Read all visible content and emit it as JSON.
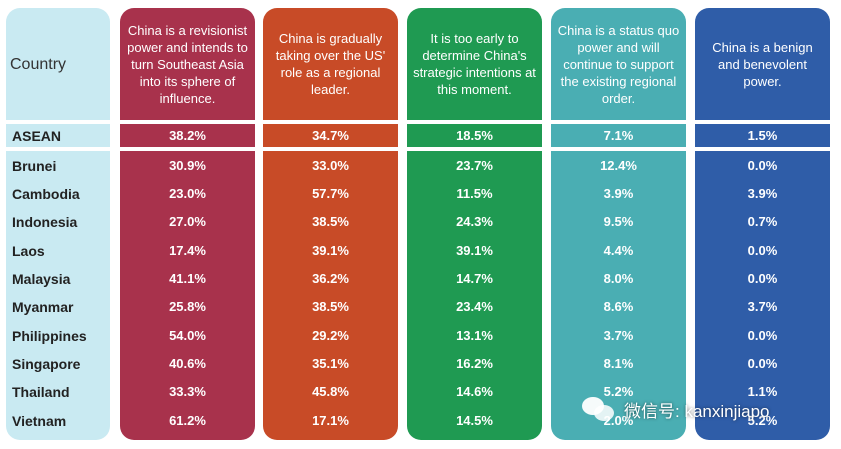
{
  "chart_data": {
    "type": "table",
    "country_header": "Country",
    "columns": [
      {
        "label": "China is a revisionist power and intends to turn Southeast Asia into its sphere of influence.",
        "color": "#a8324c"
      },
      {
        "label": "China is gradually taking over the US' role as a regional leader.",
        "color": "#c84b27"
      },
      {
        "label": "It is too early to determine China's strategic intentions at this moment.",
        "color": "#1f9a52"
      },
      {
        "label": "China is a status quo power and will continue to support the existing regional order.",
        "color": "#4aaeb3"
      },
      {
        "label": "China is a benign and benevolent power.",
        "color": "#2f5da8"
      }
    ],
    "rows": [
      {
        "country": "ASEAN",
        "values": [
          "38.2%",
          "34.7%",
          "18.5%",
          "7.1%",
          "1.5%"
        ]
      },
      {
        "country": "Brunei",
        "values": [
          "30.9%",
          "33.0%",
          "23.7%",
          "12.4%",
          "0.0%"
        ]
      },
      {
        "country": "Cambodia",
        "values": [
          "23.0%",
          "57.7%",
          "11.5%",
          "3.9%",
          "3.9%"
        ]
      },
      {
        "country": "Indonesia",
        "values": [
          "27.0%",
          "38.5%",
          "24.3%",
          "9.5%",
          "0.7%"
        ]
      },
      {
        "country": "Laos",
        "values": [
          "17.4%",
          "39.1%",
          "39.1%",
          "4.4%",
          "0.0%"
        ]
      },
      {
        "country": "Malaysia",
        "values": [
          "41.1%",
          "36.2%",
          "14.7%",
          "8.0%",
          "0.0%"
        ]
      },
      {
        "country": "Myanmar",
        "values": [
          "25.8%",
          "38.5%",
          "23.4%",
          "8.6%",
          "3.7%"
        ]
      },
      {
        "country": "Philippines",
        "values": [
          "54.0%",
          "29.2%",
          "13.1%",
          "3.7%",
          "0.0%"
        ]
      },
      {
        "country": "Singapore",
        "values": [
          "40.6%",
          "35.1%",
          "16.2%",
          "8.1%",
          "0.0%"
        ]
      },
      {
        "country": "Thailand",
        "values": [
          "33.3%",
          "45.8%",
          "14.6%",
          "5.2%",
          "1.1%"
        ]
      },
      {
        "country": "Vietnam",
        "values": [
          "61.2%",
          "17.1%",
          "14.5%",
          "2.0%",
          "5.2%"
        ]
      }
    ],
    "country_color": "#c9eaf2"
  },
  "watermark": {
    "text": "微信号: kanxinjiapo",
    "icon": "wechat-icon"
  }
}
